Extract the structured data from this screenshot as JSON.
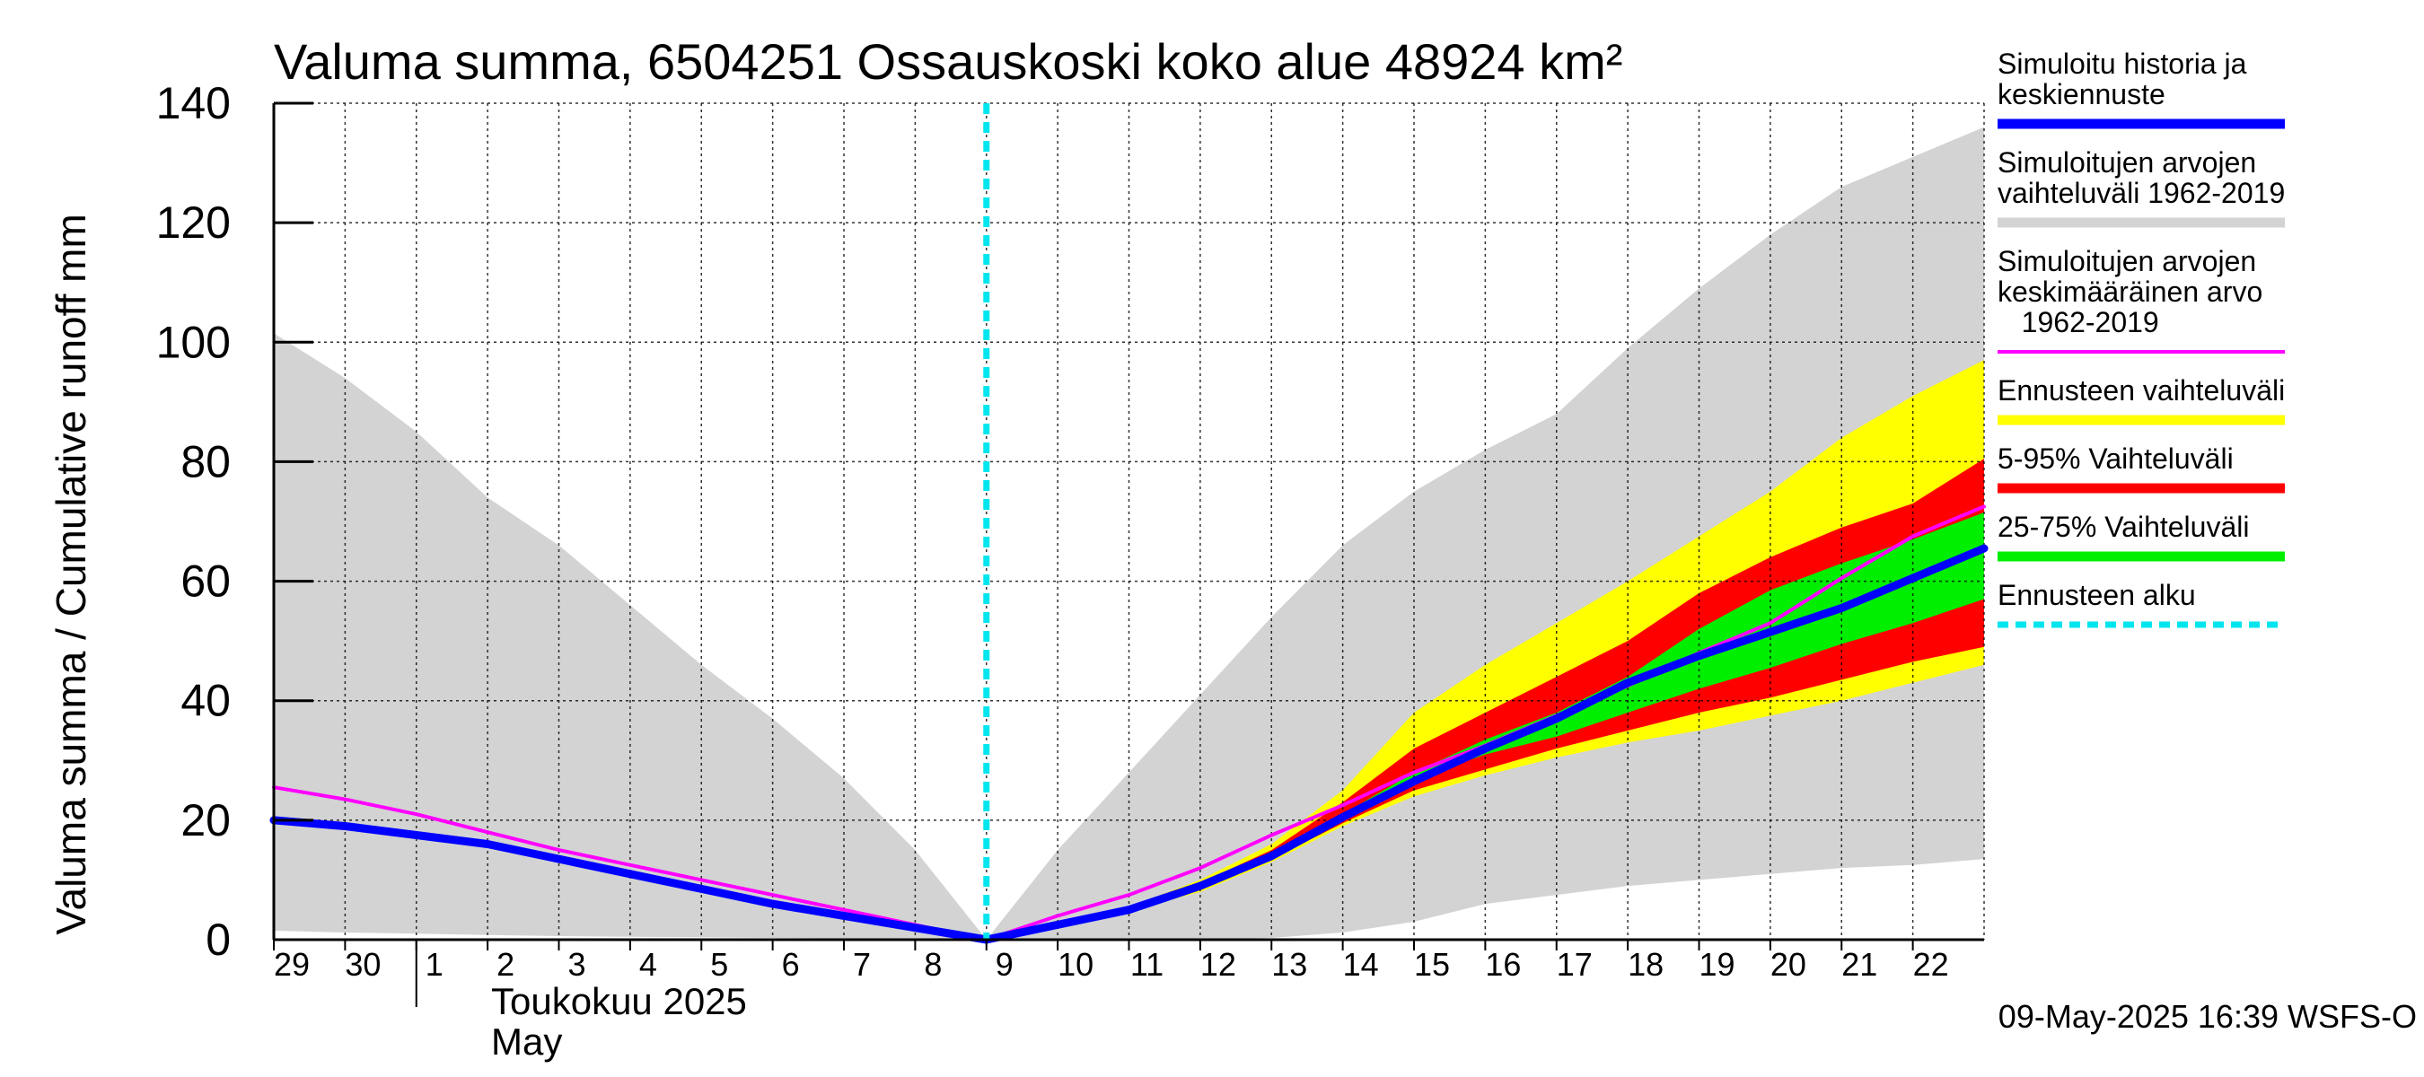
{
  "chart_data": {
    "type": "area",
    "title": "Valuma summa, 6504251 Ossauskoski koko alue 48924 km²",
    "ylabel": "Valuma summa / Cumulative runoff    mm",
    "ylim": [
      0,
      140
    ],
    "yticks": [
      0,
      20,
      40,
      60,
      80,
      100,
      120,
      140
    ],
    "grid": true,
    "legend_position": "right",
    "x_start": "2025-04-29",
    "x_end": "2025-05-23",
    "x_tick_labels": [
      "29",
      "30",
      "1",
      "2",
      "3",
      "4",
      "5",
      "6",
      "7",
      "8",
      "9",
      "10",
      "11",
      "12",
      "13",
      "14",
      "15",
      "16",
      "17",
      "18",
      "19",
      "20",
      "21",
      "22"
    ],
    "x_tick_dates": [
      "2025-04-29",
      "2025-04-30",
      "2025-05-01",
      "2025-05-02",
      "2025-05-03",
      "2025-05-04",
      "2025-05-05",
      "2025-05-06",
      "2025-05-07",
      "2025-05-08",
      "2025-05-09",
      "2025-05-10",
      "2025-05-11",
      "2025-05-12",
      "2025-05-13",
      "2025-05-14",
      "2025-05-15",
      "2025-05-16",
      "2025-05-17",
      "2025-05-18",
      "2025-05-19",
      "2025-05-20",
      "2025-05-21",
      "2025-05-22"
    ],
    "month_label_fi": "Toukokuu  2025",
    "month_label_en": "May",
    "month_start": "2025-05-01",
    "forecast_start": "2025-05-09",
    "footer": "09-May-2025 16:39 WSFS-O",
    "dates": [
      "2025-04-29",
      "2025-04-30",
      "2025-05-01",
      "2025-05-02",
      "2025-05-03",
      "2025-05-04",
      "2025-05-05",
      "2025-05-06",
      "2025-05-07",
      "2025-05-08",
      "2025-05-09",
      "2025-05-10",
      "2025-05-11",
      "2025-05-12",
      "2025-05-13",
      "2025-05-14",
      "2025-05-15",
      "2025-05-16",
      "2025-05-17",
      "2025-05-18",
      "2025-05-19",
      "2025-05-20",
      "2025-05-21",
      "2025-05-22",
      "2025-05-23"
    ],
    "series": [
      {
        "name": "Simuloitujen arvojen vaihteluväli 1962-2019",
        "kind": "band",
        "color": "#d3d3d3",
        "upper": [
          101.5,
          94,
          85,
          74,
          66,
          56,
          46,
          37,
          27,
          15,
          0,
          15,
          28,
          41,
          54,
          66,
          75,
          82,
          88,
          99,
          109,
          118,
          126,
          131,
          136
        ],
        "lower": [
          1.5,
          1.2,
          1,
          0.8,
          0.6,
          0.5,
          0.4,
          0.3,
          0.2,
          0.1,
          0,
          0,
          0,
          0,
          0.3,
          1.2,
          3,
          6,
          7.5,
          9,
          10,
          11,
          12,
          12.5,
          13.5
        ]
      },
      {
        "name": "Ennusteen vaihteluväli",
        "kind": "band",
        "color": "#ffff00",
        "upper": [
          null,
          null,
          null,
          null,
          null,
          null,
          null,
          null,
          null,
          null,
          0,
          2.5,
          5.5,
          10,
          16,
          25,
          38,
          46,
          53,
          60,
          67.5,
          75,
          84,
          91,
          97
        ],
        "lower": [
          null,
          null,
          null,
          null,
          null,
          null,
          null,
          null,
          null,
          null,
          0,
          2.2,
          4.8,
          8,
          13,
          19,
          24,
          27.5,
          30.5,
          33,
          35,
          37.5,
          40,
          43,
          46
        ]
      },
      {
        "name": "5-95% Vaihteluväli",
        "kind": "band",
        "color": "#ff0000",
        "upper": [
          null,
          null,
          null,
          null,
          null,
          null,
          null,
          null,
          null,
          null,
          0,
          2.4,
          5.3,
          9.5,
          15,
          23,
          32,
          38,
          44,
          50,
          58,
          64,
          69,
          73,
          80.5
        ],
        "lower": [
          null,
          null,
          null,
          null,
          null,
          null,
          null,
          null,
          null,
          null,
          0,
          2.3,
          5,
          8.5,
          13.5,
          19.5,
          25,
          28.5,
          32,
          35,
          38,
          40.5,
          43.5,
          46.5,
          49
        ]
      },
      {
        "name": "25-75% Vaihteluväli",
        "kind": "band",
        "color": "#00ee00",
        "upper": [
          null,
          null,
          null,
          null,
          null,
          null,
          null,
          null,
          null,
          null,
          0,
          2.35,
          5.2,
          9,
          14.2,
          21,
          28,
          33.5,
          38,
          44,
          52,
          58.5,
          63,
          67,
          71.5
        ],
        "lower": [
          null,
          null,
          null,
          null,
          null,
          null,
          null,
          null,
          null,
          null,
          0,
          2.3,
          5.1,
          8.8,
          13.8,
          20.3,
          26.8,
          31,
          34,
          38,
          42,
          45.5,
          49.5,
          53,
          57
        ]
      },
      {
        "name": "Simuloitujen arvojen keskimääräinen arvo 1962-2019",
        "kind": "line",
        "color": "#ff00ff",
        "values": [
          25.5,
          23.5,
          21,
          18,
          15,
          12.5,
          10,
          7.5,
          5,
          2.5,
          0,
          4,
          7.5,
          12,
          17.5,
          22.5,
          28,
          32.5,
          37.5,
          42.5,
          48,
          53,
          60.5,
          67.5,
          72.5
        ]
      },
      {
        "name": "Simuloitu historia ja keskiennuste",
        "kind": "line",
        "color": "#0000ff",
        "values": [
          20,
          19,
          17.5,
          16,
          13.5,
          11,
          8.5,
          6,
          4,
          2,
          0,
          2.5,
          5,
          9,
          14,
          20.5,
          26.5,
          32,
          37,
          43,
          47.5,
          51.5,
          55.5,
          60.5,
          65.5
        ]
      }
    ]
  },
  "legend": [
    {
      "lines": [
        "Simuloitu historia ja",
        "keskiennuste"
      ],
      "color": "#0000ff",
      "style": "solid"
    },
    {
      "lines": [
        "Simuloitujen arvojen",
        "vaihteluväli 1962-2019"
      ],
      "color": "#d3d3d3",
      "style": "solid"
    },
    {
      "lines": [
        "Simuloitujen arvojen",
        "keskimääräinen arvo",
        "   1962-2019"
      ],
      "color": "#ff00ff",
      "style": "thin"
    },
    {
      "lines": [
        "Ennusteen vaihteluväli"
      ],
      "color": "#ffff00",
      "style": "solid"
    },
    {
      "lines": [
        "5-95% Vaihteluväli"
      ],
      "color": "#ff0000",
      "style": "solid"
    },
    {
      "lines": [
        "25-75% Vaihteluväli"
      ],
      "color": "#00ee00",
      "style": "solid"
    },
    {
      "lines": [
        "Ennusteen alku"
      ],
      "color": "#00e5ee",
      "style": "dashed"
    }
  ]
}
